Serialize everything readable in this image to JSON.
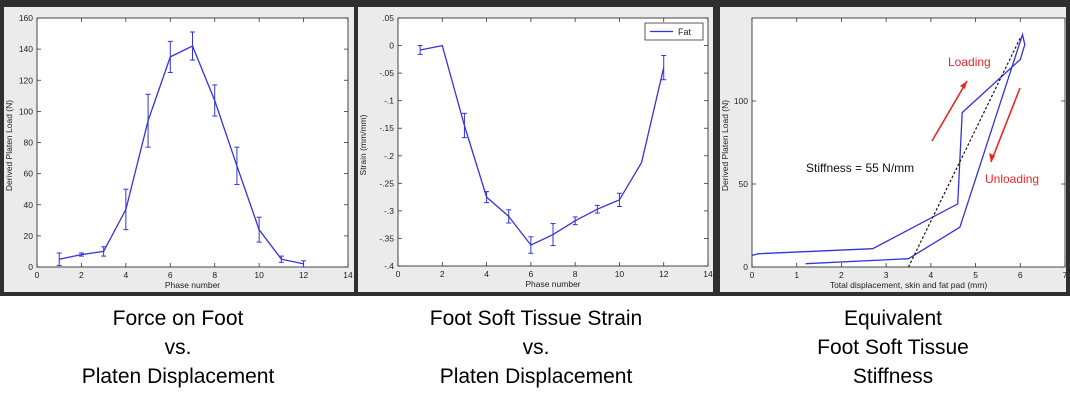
{
  "chart_data": [
    {
      "type": "line",
      "xlabel": "Phase number",
      "ylabel": "Derived Platen Load (N)",
      "xlim": [
        0,
        14
      ],
      "ylim": [
        0,
        160
      ],
      "xticks": [
        0,
        2,
        4,
        6,
        8,
        10,
        12,
        14
      ],
      "yticks": [
        0,
        20,
        40,
        60,
        80,
        100,
        120,
        140,
        160
      ],
      "grid": false,
      "series": [
        {
          "x": [
            1,
            2,
            3,
            4,
            5,
            6,
            7,
            8,
            9,
            10,
            11,
            12
          ],
          "y": [
            5,
            8,
            10,
            37,
            94,
            135,
            142,
            107,
            65,
            24,
            5,
            2
          ],
          "err": [
            4,
            1,
            3,
            13,
            17,
            10,
            9,
            10,
            12,
            8,
            2,
            2
          ]
        }
      ]
    },
    {
      "type": "line",
      "xlabel": "Phase number",
      "ylabel": "Strain (mm/mm)",
      "xlim": [
        0,
        14
      ],
      "ylim": [
        -0.4,
        0.05
      ],
      "xticks": [
        0,
        2,
        4,
        6,
        8,
        10,
        12,
        14
      ],
      "yticks": [
        0.05,
        0,
        -0.05,
        -0.1,
        -0.15,
        -0.2,
        -0.25,
        -0.3,
        -0.35,
        -0.4
      ],
      "grid": false,
      "legend": "top-right",
      "series": [
        {
          "name": "Fat",
          "x": [
            1,
            2,
            3,
            4,
            5,
            6,
            7,
            8,
            9,
            10,
            11,
            12
          ],
          "y": [
            -0.008,
            0,
            -0.145,
            -0.275,
            -0.31,
            -0.362,
            -0.343,
            -0.318,
            -0.297,
            -0.28,
            -0.212,
            -0.04
          ],
          "err": [
            0.008,
            0,
            0.022,
            0.01,
            0.012,
            0.015,
            0.02,
            0.007,
            0.007,
            0.012,
            0,
            0.022
          ]
        }
      ]
    },
    {
      "type": "line",
      "xlabel": "Total displacement, skin and fat pad (mm)",
      "ylabel": "Derived Platen Load (N)",
      "xlim": [
        0,
        7
      ],
      "ylim": [
        0,
        150
      ],
      "xticks": [
        0,
        1,
        2,
        3,
        4,
        5,
        6,
        7
      ],
      "yticks": [
        0,
        50,
        100
      ],
      "grid": false,
      "series": [
        {
          "x": [
            0,
            0.15,
            2.7,
            4.6,
            4.7,
            6.0,
            6.1,
            6.05,
            4.65,
            3.5,
            1.2
          ],
          "y": [
            7,
            8,
            11,
            38,
            93,
            125,
            134,
            140,
            24,
            5,
            2
          ]
        },
        {
          "x": [
            3.5,
            6.0
          ],
          "y": [
            0,
            138
          ],
          "dashed": true
        }
      ],
      "annotations": {
        "stiffness": "Stiffness = 55 N/mm",
        "loading": "Loading",
        "unloading": "Unloading"
      }
    }
  ],
  "captions": [
    [
      "Force on Foot",
      "vs.",
      "Platen Displacement"
    ],
    [
      "Foot Soft Tissue Strain",
      "vs.",
      "Platen Displacement"
    ],
    [
      "Equivalent",
      "Foot Soft Tissue",
      "Stiffness"
    ]
  ],
  "colors": {
    "series": "#3333dd",
    "annotation": "#e8262a",
    "frame": "#3a3a3a",
    "panel_bg": "#ebebeb"
  }
}
